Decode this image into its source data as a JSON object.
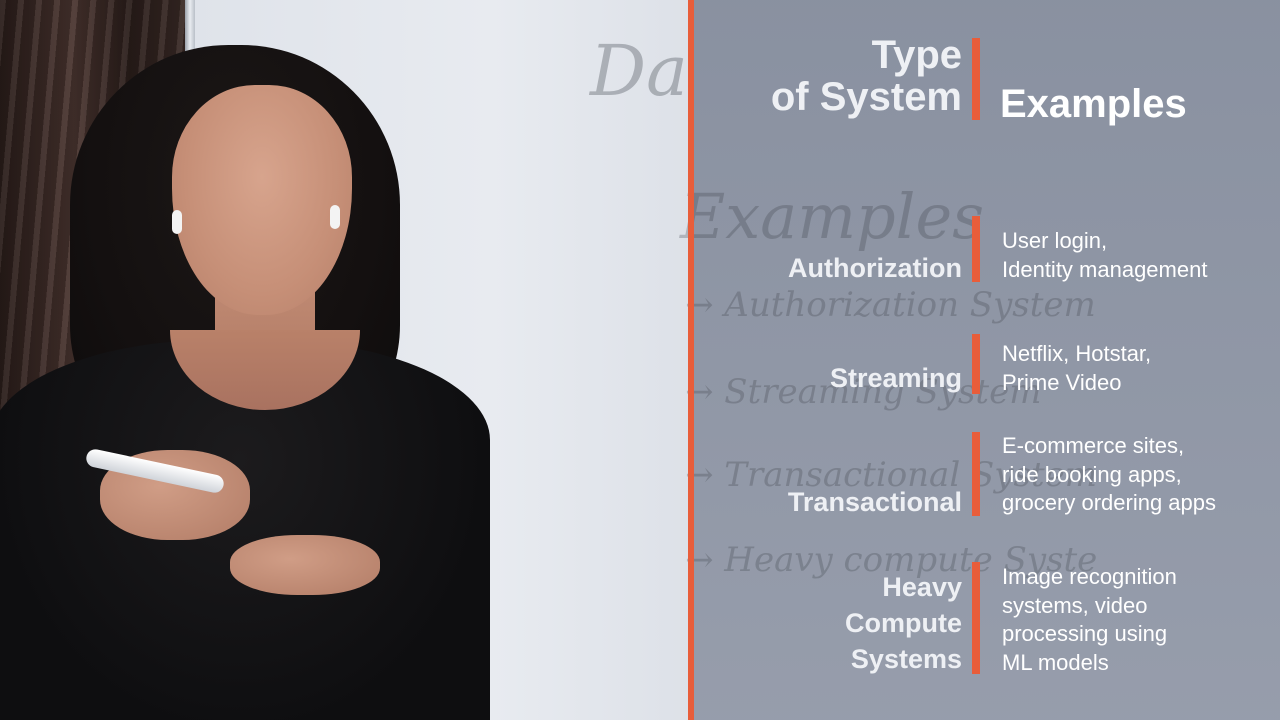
{
  "panel": {
    "header_type": "Type\nof System",
    "header_examples": "Examples",
    "rows": [
      {
        "type": "Authorization",
        "examples": "User login,\nIdentity management"
      },
      {
        "type": "Streaming",
        "examples": "Netflix, Hotstar,\nPrime Video"
      },
      {
        "type": "Transactional",
        "examples": "E-commerce sites,\nride booking apps,\ngrocery ordering apps"
      },
      {
        "type": "Heavy\nCompute\nSystems",
        "examples": "Image recognition\nsystems, video\nprocessing using\nML models"
      }
    ]
  },
  "whiteboard": {
    "title": "Data & Data flow",
    "heading": "Examples",
    "lines": [
      "→ Authorization System",
      "→ Streaming System",
      "→ Transactional System",
      "→ Heavy compute Syste"
    ]
  },
  "colors": {
    "accent": "#e85d3a",
    "panel": "#7f8799",
    "text": "#ffffff"
  }
}
